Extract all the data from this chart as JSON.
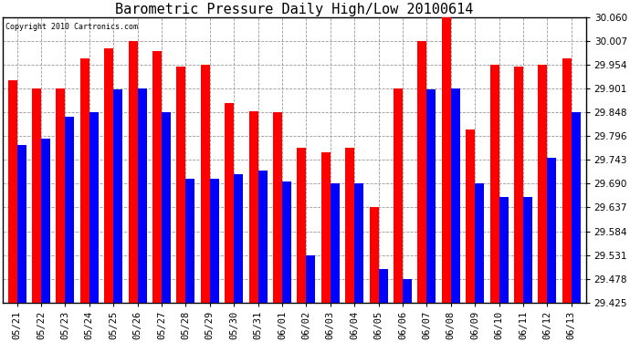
{
  "title": "Barometric Pressure Daily High/Low 20100614",
  "copyright": "Copyright 2010 Cartronics.com",
  "ylim": [
    29.425,
    30.06
  ],
  "yticks": [
    29.425,
    29.478,
    29.531,
    29.584,
    29.637,
    29.69,
    29.743,
    29.796,
    29.848,
    29.901,
    29.954,
    30.007,
    30.06
  ],
  "categories": [
    "05/21",
    "05/22",
    "05/23",
    "05/24",
    "05/25",
    "05/26",
    "05/27",
    "05/28",
    "05/29",
    "05/30",
    "05/31",
    "06/01",
    "06/02",
    "06/03",
    "06/04",
    "06/05",
    "06/06",
    "06/07",
    "06/08",
    "06/09",
    "06/10",
    "06/11",
    "06/12",
    "06/13"
  ],
  "highs": [
    29.92,
    29.901,
    29.901,
    29.968,
    29.99,
    30.007,
    29.985,
    29.95,
    29.954,
    29.87,
    29.85,
    29.848,
    29.77,
    29.76,
    29.77,
    29.637,
    29.901,
    30.007,
    30.06,
    29.81,
    29.954,
    29.95,
    29.954,
    29.968
  ],
  "lows": [
    29.775,
    29.79,
    29.838,
    29.848,
    29.9,
    29.901,
    29.848,
    29.7,
    29.7,
    29.71,
    29.72,
    29.695,
    29.531,
    29.69,
    29.69,
    29.5,
    29.478,
    29.9,
    29.901,
    29.69,
    29.66,
    29.66,
    29.748,
    29.848
  ],
  "high_color": "#ff0000",
  "low_color": "#0000ff",
  "background_color": "#ffffff",
  "grid_color": "#999999",
  "title_fontsize": 11,
  "tick_fontsize": 7.5,
  "bar_width": 0.38
}
